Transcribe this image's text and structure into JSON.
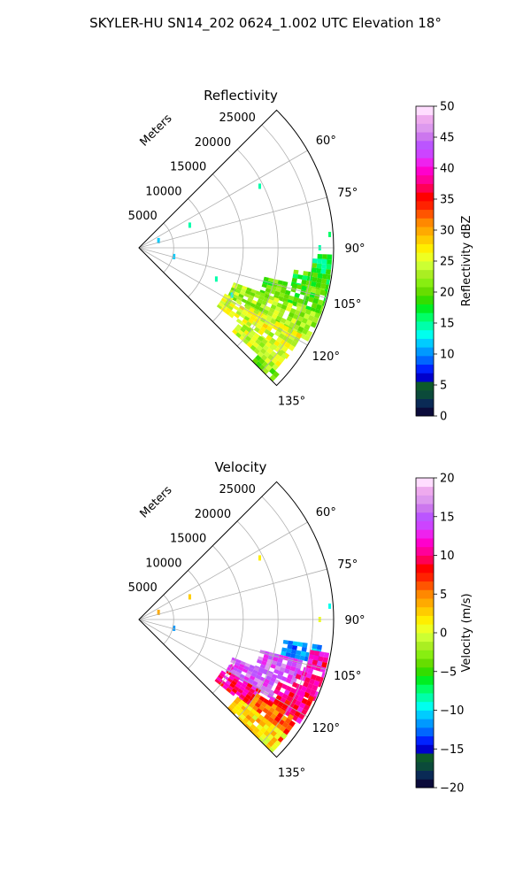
{
  "figure": {
    "suptitle": "SKYLER-HU  SN14_202  0624_1.002 UTC Elevation 18°"
  },
  "chart_data": [
    {
      "type": "heatmap",
      "title": "Reflectivity",
      "radial_label": "Meters",
      "radial_ticks": [
        5000,
        10000,
        15000,
        20000,
        25000
      ],
      "radial_tick_labels": [
        "5000",
        "10000",
        "15000",
        "20000",
        "25000"
      ],
      "rlim": [
        0,
        28000
      ],
      "theta_ticks": [
        60,
        75,
        90,
        105,
        120,
        135
      ],
      "theta_tick_labels": [
        "60°",
        "75°",
        "90°",
        "105°",
        "120°",
        "135°"
      ],
      "theta_lim": [
        45,
        135
      ],
      "grid": true,
      "colorbar": {
        "label": "Reflectivity dBZ",
        "range": [
          0,
          50
        ],
        "ticks": [
          0,
          5,
          10,
          15,
          20,
          25,
          30,
          35,
          40,
          45,
          50
        ],
        "tick_labels": [
          "0",
          "5",
          "10",
          "15",
          "20",
          "25",
          "30",
          "35",
          "40",
          "45",
          "50"
        ],
        "colors": [
          "#0b0b3a",
          "#0a2a55",
          "#0b4a3a",
          "#0d5a2a",
          "#0000cc",
          "#0022ff",
          "#0066ff",
          "#0099ff",
          "#00ccff",
          "#00ffee",
          "#00ffaa",
          "#00ff66",
          "#00ee22",
          "#33dd00",
          "#66dd00",
          "#88ee11",
          "#aaee22",
          "#ccff33",
          "#eeff22",
          "#ffee00",
          "#ffcc00",
          "#ffaa00",
          "#ff8800",
          "#ff5500",
          "#ff2200",
          "#ff0000",
          "#ff0055",
          "#ff0099",
          "#ff00cc",
          "#ee22ee",
          "#cc44ff",
          "#bb55ff",
          "#cc77ee",
          "#dd99ee",
          "#eeaaee",
          "#ffddff"
        ]
      },
      "echoes": [
        {
          "az_range": [
            98,
            103
          ],
          "r_range": [
            22500,
            27800
          ],
          "value": 19
        },
        {
          "az_range": [
            103,
            110
          ],
          "r_range": [
            18500,
            27800
          ],
          "value": 20
        },
        {
          "az_range": [
            110,
            118
          ],
          "r_range": [
            14500,
            27500
          ],
          "value": 23
        },
        {
          "az_range": [
            118,
            126
          ],
          "r_range": [
            14000,
            26500
          ],
          "value": 25
        },
        {
          "az_range": [
            126,
            132
          ],
          "r_range": [
            18000,
            26000
          ],
          "value": 24
        },
        {
          "az_range": [
            132,
            135
          ],
          "r_range": [
            23000,
            27000
          ],
          "value": 21
        },
        {
          "az_range": [
            92,
            98
          ],
          "r_range": [
            25000,
            27800
          ],
          "value": 17
        }
      ],
      "speckles": [
        {
          "az": 63,
          "r": 19500,
          "value": 15
        },
        {
          "az": 66,
          "r": 8000,
          "value": 14
        },
        {
          "az": 86,
          "r": 27500,
          "value": 16
        },
        {
          "az": 90,
          "r": 26000,
          "value": 14
        },
        {
          "az": 104,
          "r": 5200,
          "value": 12
        },
        {
          "az": 112,
          "r": 12000,
          "value": 15
        },
        {
          "az": 117,
          "r": 15000,
          "value": 13
        },
        {
          "az": 70,
          "r": 3000,
          "value": 12
        }
      ]
    },
    {
      "type": "heatmap",
      "title": "Velocity",
      "radial_label": "Meters",
      "radial_ticks": [
        5000,
        10000,
        15000,
        20000,
        25000
      ],
      "radial_tick_labels": [
        "5000",
        "10000",
        "15000",
        "20000",
        "25000"
      ],
      "rlim": [
        0,
        28000
      ],
      "theta_ticks": [
        60,
        75,
        90,
        105,
        120,
        135
      ],
      "theta_tick_labels": [
        "60°",
        "75°",
        "90°",
        "105°",
        "120°",
        "135°"
      ],
      "theta_lim": [
        45,
        135
      ],
      "grid": true,
      "colorbar": {
        "label": "Velocity (m/s)",
        "range": [
          -20,
          20
        ],
        "ticks": [
          -20,
          -15,
          -10,
          -5,
          0,
          5,
          10,
          15,
          20
        ],
        "tick_labels": [
          "−20",
          "−15",
          "−10",
          "−5",
          "0",
          "5",
          "10",
          "15",
          "20"
        ],
        "colors": [
          "#0b0b3a",
          "#0a2a55",
          "#0b4a3a",
          "#0d5a2a",
          "#0000cc",
          "#0022ff",
          "#0066ff",
          "#0099ff",
          "#00ccff",
          "#00ffee",
          "#00ffaa",
          "#00ff66",
          "#00ee22",
          "#33dd00",
          "#66dd00",
          "#88ee11",
          "#aaee22",
          "#ccff33",
          "#eeff22",
          "#ffee00",
          "#ffcc00",
          "#ffaa00",
          "#ff8800",
          "#ff5500",
          "#ff2200",
          "#ff0000",
          "#ff0055",
          "#ff0099",
          "#ff00cc",
          "#ee22ee",
          "#cc44ff",
          "#bb55ff",
          "#cc77ee",
          "#dd99ee",
          "#eeaaee",
          "#ffddff"
        ]
      },
      "echoes": [
        {
          "az_range": [
            98,
            104
          ],
          "r_range": [
            21000,
            26000
          ],
          "value": -11
        },
        {
          "az_range": [
            100,
            106
          ],
          "r_range": [
            25000,
            27800
          ],
          "value": 11
        },
        {
          "az_range": [
            104,
            112
          ],
          "r_range": [
            18000,
            24000
          ],
          "value": 15
        },
        {
          "az_range": [
            106,
            114
          ],
          "r_range": [
            24000,
            27800
          ],
          "value": 11
        },
        {
          "az_range": [
            112,
            120
          ],
          "r_range": [
            14500,
            22000
          ],
          "value": 15
        },
        {
          "az_range": [
            114,
            122
          ],
          "r_range": [
            22000,
            27500
          ],
          "value": 10
        },
        {
          "az_range": [
            120,
            128
          ],
          "r_range": [
            14000,
            20000
          ],
          "value": 10
        },
        {
          "az_range": [
            122,
            130
          ],
          "r_range": [
            20000,
            26500
          ],
          "value": 6
        },
        {
          "az_range": [
            128,
            135
          ],
          "r_range": [
            18000,
            27000
          ],
          "value": 2
        }
      ],
      "speckles": [
        {
          "az": 63,
          "r": 19500,
          "value": 2
        },
        {
          "az": 66,
          "r": 8000,
          "value": 3
        },
        {
          "az": 86,
          "r": 27500,
          "value": -9
        },
        {
          "az": 90,
          "r": 26000,
          "value": 1
        },
        {
          "az": 104,
          "r": 5200,
          "value": -12
        },
        {
          "az": 117,
          "r": 15000,
          "value": 12
        },
        {
          "az": 70,
          "r": 3000,
          "value": 4
        }
      ]
    }
  ]
}
